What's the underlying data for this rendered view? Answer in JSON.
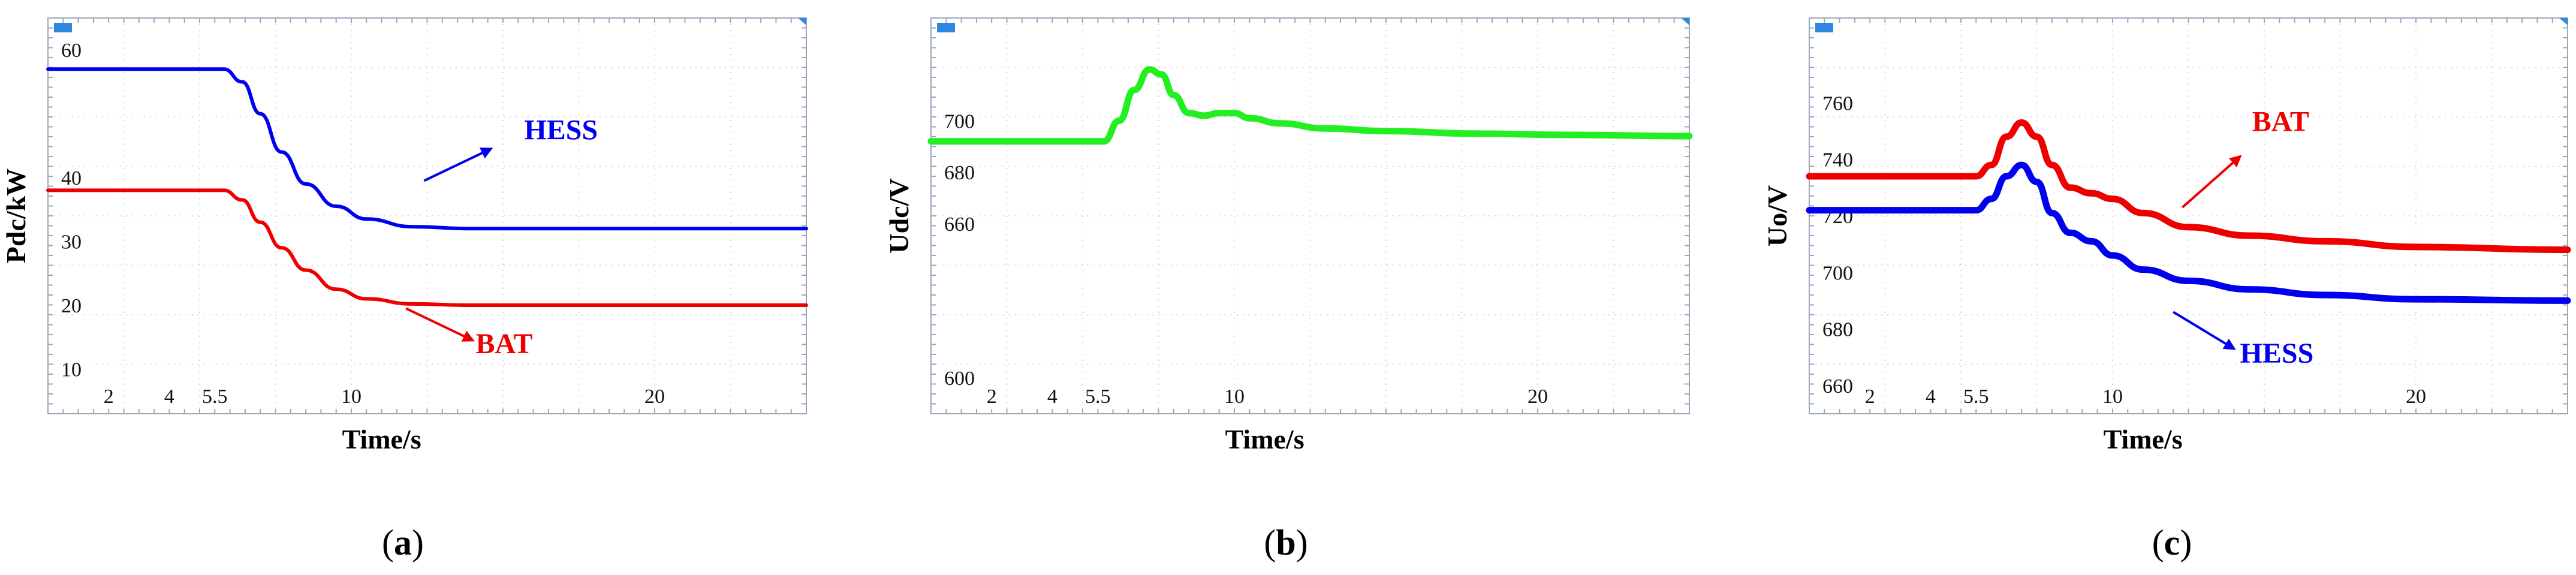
{
  "chart_data": [
    {
      "type": "line",
      "panel": "a",
      "caption": "(a)",
      "xlabel": "Time/s",
      "ylabel": "Pdc/kW",
      "xlim": [
        0,
        25
      ],
      "ylim": [
        3,
        65
      ],
      "xticks": [
        "2",
        "4",
        "5.5",
        "10",
        "20"
      ],
      "xtick_values": [
        2,
        4,
        5.5,
        10,
        20
      ],
      "yticks": [
        "10",
        "20",
        "30",
        "40",
        "60"
      ],
      "ytick_values": [
        10,
        20,
        30,
        40,
        60
      ],
      "grid": true,
      "series": [
        {
          "name": "HESS",
          "color": "#0000ee",
          "width": 6,
          "x": [
            0,
            5.8,
            6.4,
            7.0,
            7.7,
            8.5,
            9.5,
            10.5,
            12,
            14,
            18,
            25
          ],
          "y": [
            57,
            57,
            55,
            50,
            44,
            39,
            35.5,
            33.5,
            32.3,
            32,
            32,
            32
          ]
        },
        {
          "name": "BAT",
          "color": "#ee0000",
          "width": 6,
          "x": [
            0,
            5.8,
            6.4,
            7.0,
            7.7,
            8.5,
            9.5,
            10.5,
            12,
            14,
            18,
            25
          ],
          "y": [
            38,
            38,
            36.5,
            33,
            29,
            25.5,
            22.5,
            21,
            20.2,
            20,
            20,
            20
          ]
        }
      ],
      "annotations": [
        {
          "text": "HESS",
          "color": "#0000ee",
          "at": [
            15.7,
            46
          ],
          "arrow_from": [
            12.4,
            39.5
          ],
          "arrow_to": [
            14.6,
            44.5
          ]
        },
        {
          "text": "BAT",
          "color": "#ee0000",
          "at": [
            14.1,
            12.5
          ],
          "arrow_from": [
            11.8,
            19.5
          ],
          "arrow_to": [
            14.0,
            14.5
          ]
        }
      ]
    },
    {
      "type": "line",
      "panel": "b",
      "caption": "(b)",
      "xlabel": "Time/s",
      "ylabel": "Udc/V",
      "xlim": [
        0,
        25
      ],
      "ylim": [
        586,
        740
      ],
      "xticks": [
        "2",
        "4",
        "5.5",
        "10",
        "20"
      ],
      "xtick_values": [
        2,
        4,
        5.5,
        10,
        20
      ],
      "yticks": [
        "600",
        "660",
        "680",
        "700"
      ],
      "ytick_values": [
        600,
        660,
        680,
        700
      ],
      "grid": true,
      "series": [
        {
          "name": "",
          "color": "#22ee22",
          "width": 11,
          "x": [
            0,
            5.7,
            6.2,
            6.7,
            7.2,
            7.6,
            8.0,
            8.5,
            9.0,
            9.5,
            10.0,
            10.5,
            11.5,
            13,
            15,
            18,
            21,
            25
          ],
          "y": [
            692,
            692,
            700,
            712,
            720,
            718,
            710,
            703,
            702,
            703,
            703,
            701,
            699,
            697,
            696,
            695,
            694.5,
            694
          ]
        }
      ]
    },
    {
      "type": "line",
      "panel": "c",
      "caption": "(c)",
      "xlabel": "Time/s",
      "ylabel": "Uo/V",
      "xlim": [
        0,
        25
      ],
      "ylim": [
        650,
        790
      ],
      "xticks": [
        "2",
        "4",
        "5.5",
        "10",
        "20"
      ],
      "xtick_values": [
        2,
        4,
        5.5,
        10,
        20
      ],
      "yticks": [
        "660",
        "680",
        "700",
        "720",
        "740",
        "760"
      ],
      "ytick_values": [
        660,
        680,
        700,
        720,
        740,
        760
      ],
      "grid": true,
      "series": [
        {
          "name": "BAT",
          "color": "#ee0000",
          "width": 11,
          "x": [
            0,
            5.5,
            6.0,
            6.5,
            7.0,
            7.5,
            8.0,
            8.6,
            9.3,
            10.0,
            11,
            12.5,
            14.5,
            17,
            20,
            25
          ],
          "y": [
            734,
            734,
            738,
            748,
            753,
            748,
            738,
            730,
            728,
            726,
            721,
            716,
            713,
            711,
            709,
            708
          ]
        },
        {
          "name": "HESS",
          "color": "#0000ee",
          "width": 11,
          "x": [
            0,
            5.5,
            6.0,
            6.5,
            7.0,
            7.5,
            8.0,
            8.6,
            9.3,
            10.0,
            11,
            12.5,
            14.5,
            17,
            20,
            25
          ],
          "y": [
            722,
            722,
            726,
            734,
            738,
            732,
            721,
            714,
            711,
            706,
            701,
            697,
            694,
            692,
            690.5,
            690
          ]
        }
      ],
      "annotations": [
        {
          "text": "BAT",
          "color": "#ee0000",
          "at": [
            14.6,
            750
          ],
          "arrow_from": [
            12.3,
            723
          ],
          "arrow_to": [
            14.2,
            741
          ]
        },
        {
          "text": "HESS",
          "color": "#0000ee",
          "at": [
            14.2,
            668
          ],
          "arrow_from": [
            12.0,
            686
          ],
          "arrow_to": [
            14.0,
            673
          ]
        }
      ]
    }
  ]
}
